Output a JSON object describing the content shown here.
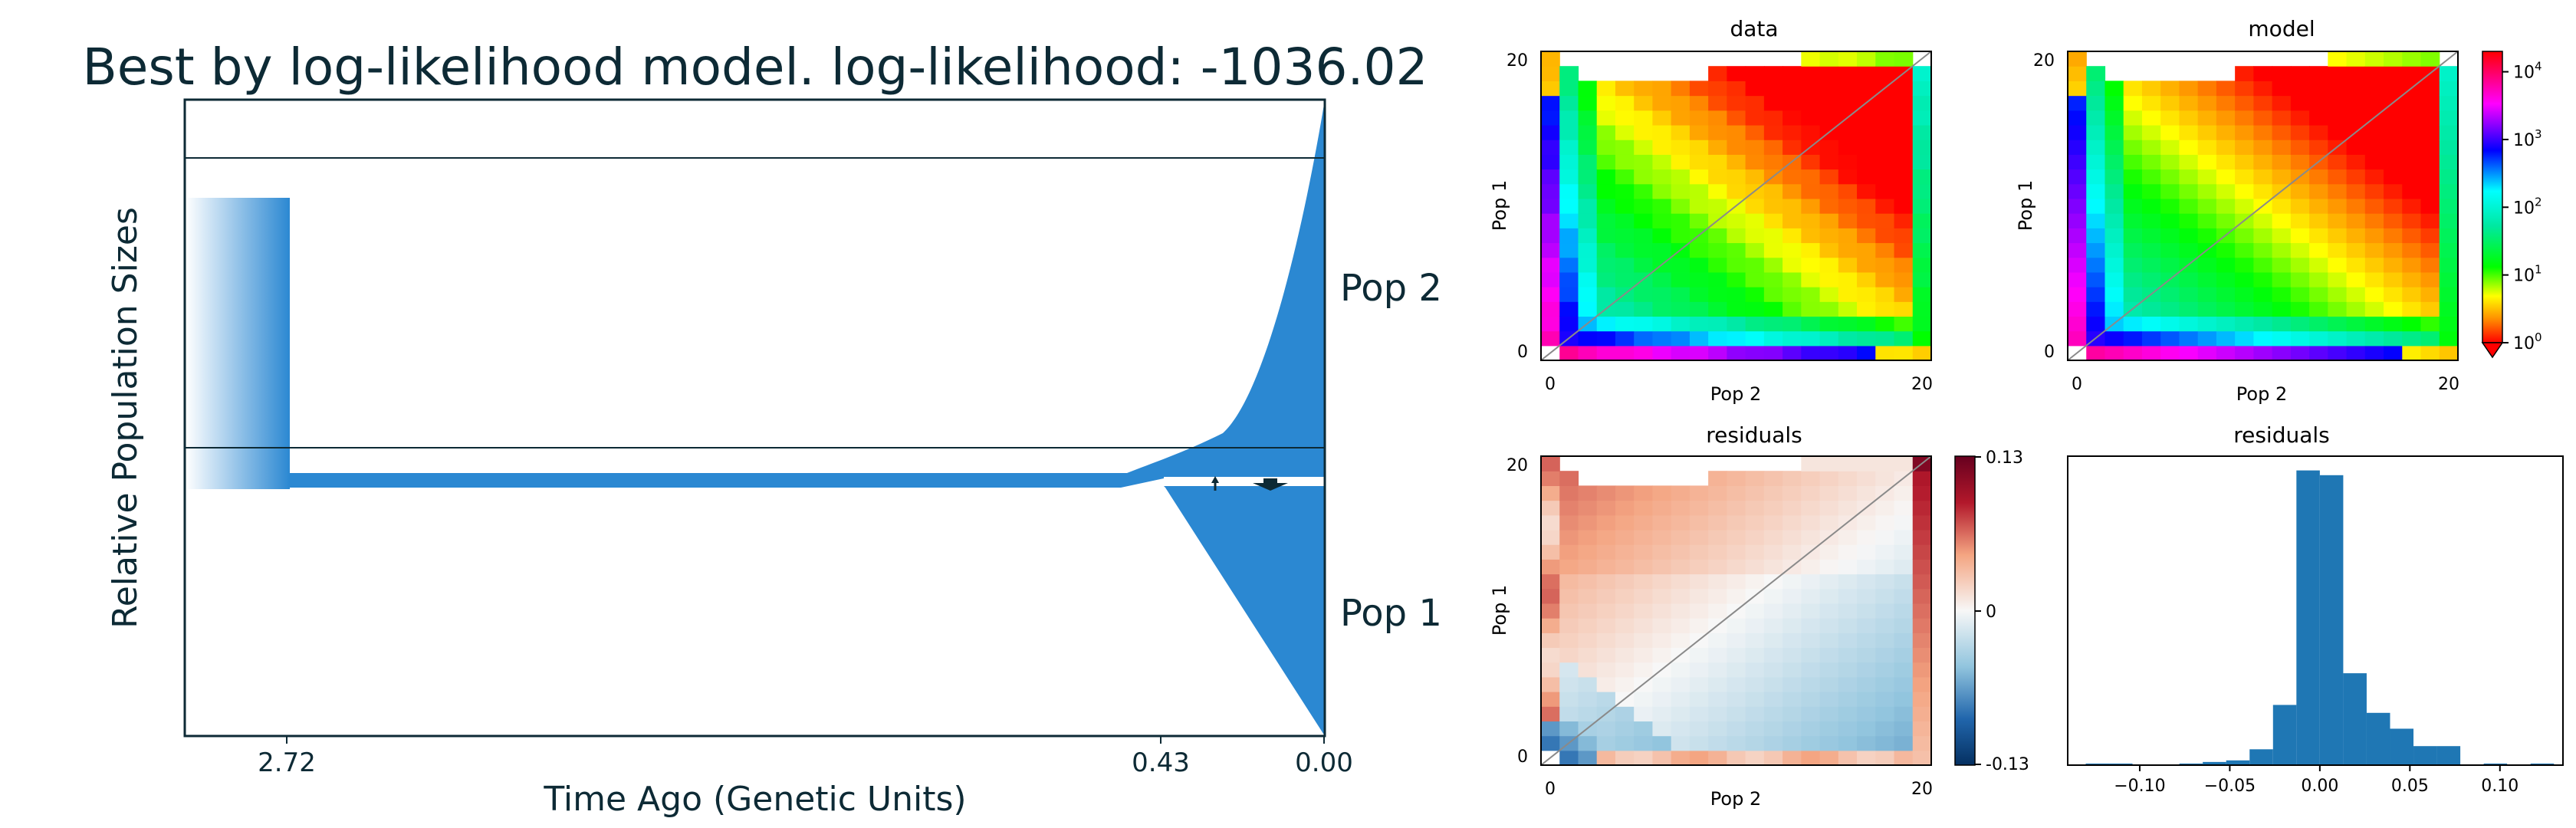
{
  "colors": {
    "demography_fill": "#2b88d2",
    "axis": "#0d2a35",
    "hist_bar": "#1f77b4",
    "diagonal": "#8a8a8a"
  },
  "demography": {
    "title": "Best by log-likelihood model. log-likelihood: -1036.02",
    "ylabel": "Relative Population Sizes",
    "xlabel": "Time Ago (Genetic Units)",
    "time_ticks": [
      "2.72",
      "0.43",
      "0.00"
    ],
    "pop_labels": [
      "Pop 2",
      "Pop 1"
    ]
  },
  "chart_data": [
    {
      "type": "heatmap",
      "title": "data",
      "xlabel": "Pop 2",
      "ylabel": "Pop 1",
      "x_ticks": [
        "0",
        "20"
      ],
      "y_ticks": [
        "0",
        "20"
      ],
      "grid_size": [
        21,
        21
      ],
      "scale": "log"
    },
    {
      "type": "heatmap",
      "title": "model",
      "xlabel": "Pop 2",
      "ylabel": "Pop 1",
      "x_ticks": [
        "0",
        "20"
      ],
      "y_ticks": [
        "0",
        "20"
      ],
      "grid_size": [
        21,
        21
      ],
      "scale": "log",
      "colorbar_ticks": [
        "10^0",
        "10^1",
        "10^2",
        "10^3",
        "10^4"
      ]
    },
    {
      "type": "heatmap",
      "title": "residuals",
      "xlabel": "Pop 2",
      "ylabel": "Pop 1",
      "x_ticks": [
        "0",
        "20"
      ],
      "y_ticks": [
        "0",
        "20"
      ],
      "grid_size": [
        21,
        21
      ],
      "colorbar_ticks": [
        "0.13",
        "0",
        "-0.13"
      ],
      "colorbar_range": [
        -0.13,
        0.13
      ]
    },
    {
      "type": "bar",
      "title": "residuals",
      "x_ticks": [
        "−0.10",
        "−0.05",
        "0.00",
        "0.05",
        "0.10"
      ],
      "xlim": [
        -0.14,
        0.135
      ],
      "bins": [
        {
          "x0": -0.13,
          "x1": -0.117,
          "v": 1
        },
        {
          "x0": -0.117,
          "x1": -0.104,
          "v": 1
        },
        {
          "x0": -0.078,
          "x1": -0.065,
          "v": 1
        },
        {
          "x0": -0.065,
          "x1": -0.052,
          "v": 2
        },
        {
          "x0": -0.052,
          "x1": -0.039,
          "v": 3
        },
        {
          "x0": -0.039,
          "x1": -0.026,
          "v": 10
        },
        {
          "x0": -0.026,
          "x1": -0.013,
          "v": 38
        },
        {
          "x0": -0.013,
          "x1": 0.0,
          "v": 186
        },
        {
          "x0": 0.0,
          "x1": 0.013,
          "v": 183
        },
        {
          "x0": 0.013,
          "x1": 0.026,
          "v": 58
        },
        {
          "x0": 0.026,
          "x1": 0.039,
          "v": 33
        },
        {
          "x0": 0.039,
          "x1": 0.052,
          "v": 23
        },
        {
          "x0": 0.052,
          "x1": 0.065,
          "v": 12
        },
        {
          "x0": 0.065,
          "x1": 0.078,
          "v": 12
        },
        {
          "x0": 0.091,
          "x1": 0.104,
          "v": 1
        },
        {
          "x0": 0.117,
          "x1": 0.13,
          "v": 1
        }
      ],
      "ymax": 195
    }
  ]
}
